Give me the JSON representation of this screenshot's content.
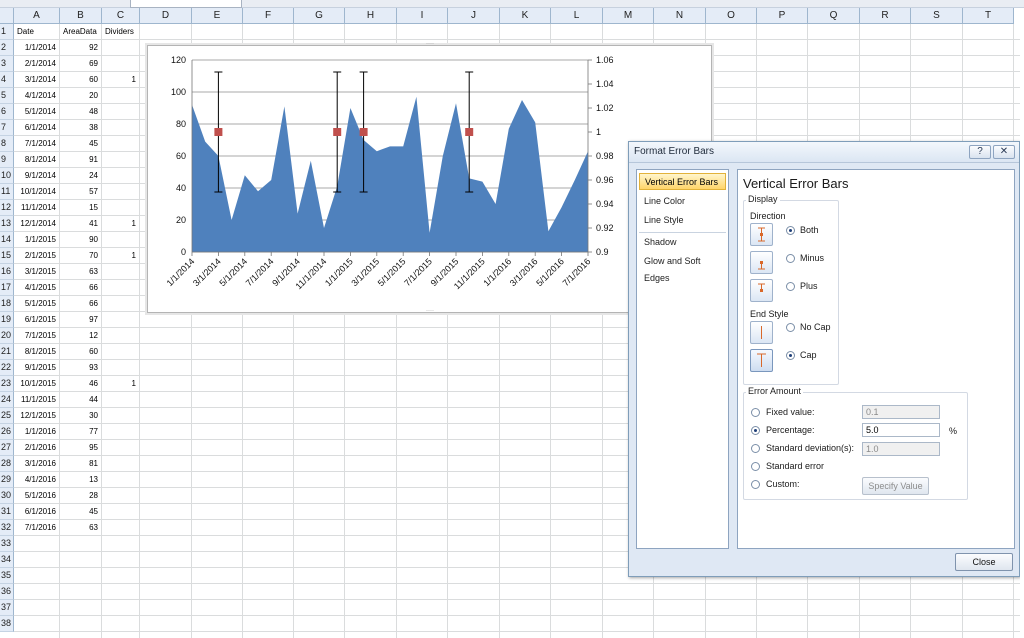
{
  "columns": [
    "A",
    "B",
    "C",
    "D",
    "E",
    "F",
    "G",
    "H",
    "I",
    "J",
    "K",
    "L",
    "M",
    "N",
    "O",
    "P",
    "Q",
    "R",
    "S",
    "T"
  ],
  "rows": [
    "1",
    "2",
    "3",
    "4",
    "5",
    "6",
    "7",
    "8",
    "9",
    "10",
    "11",
    "12",
    "13",
    "14",
    "15",
    "16",
    "17",
    "18",
    "19",
    "20",
    "21",
    "22",
    "23",
    "24",
    "25",
    "26",
    "27",
    "28",
    "29",
    "30",
    "31",
    "32",
    "33",
    "34",
    "35",
    "36",
    "37",
    "38"
  ],
  "headers": {
    "a": "Date",
    "b": "AreaData",
    "c": "Dividers"
  },
  "data": [
    {
      "date": "1/1/2014",
      "value": "92",
      "divider": ""
    },
    {
      "date": "2/1/2014",
      "value": "69",
      "divider": ""
    },
    {
      "date": "3/1/2014",
      "value": "60",
      "divider": "1"
    },
    {
      "date": "4/1/2014",
      "value": "20",
      "divider": ""
    },
    {
      "date": "5/1/2014",
      "value": "48",
      "divider": ""
    },
    {
      "date": "6/1/2014",
      "value": "38",
      "divider": ""
    },
    {
      "date": "7/1/2014",
      "value": "45",
      "divider": ""
    },
    {
      "date": "8/1/2014",
      "value": "91",
      "divider": ""
    },
    {
      "date": "9/1/2014",
      "value": "24",
      "divider": ""
    },
    {
      "date": "10/1/2014",
      "value": "57",
      "divider": ""
    },
    {
      "date": "11/1/2014",
      "value": "15",
      "divider": ""
    },
    {
      "date": "12/1/2014",
      "value": "41",
      "divider": "1"
    },
    {
      "date": "1/1/2015",
      "value": "90",
      "divider": ""
    },
    {
      "date": "2/1/2015",
      "value": "70",
      "divider": "1"
    },
    {
      "date": "3/1/2015",
      "value": "63",
      "divider": ""
    },
    {
      "date": "4/1/2015",
      "value": "66",
      "divider": ""
    },
    {
      "date": "5/1/2015",
      "value": "66",
      "divider": ""
    },
    {
      "date": "6/1/2015",
      "value": "97",
      "divider": ""
    },
    {
      "date": "7/1/2015",
      "value": "12",
      "divider": ""
    },
    {
      "date": "8/1/2015",
      "value": "60",
      "divider": ""
    },
    {
      "date": "9/1/2015",
      "value": "93",
      "divider": ""
    },
    {
      "date": "10/1/2015",
      "value": "46",
      "divider": "1"
    },
    {
      "date": "11/1/2015",
      "value": "44",
      "divider": ""
    },
    {
      "date": "12/1/2015",
      "value": "30",
      "divider": ""
    },
    {
      "date": "1/1/2016",
      "value": "77",
      "divider": ""
    },
    {
      "date": "2/1/2016",
      "value": "95",
      "divider": ""
    },
    {
      "date": "3/1/2016",
      "value": "81",
      "divider": ""
    },
    {
      "date": "4/1/2016",
      "value": "13",
      "divider": ""
    },
    {
      "date": "5/1/2016",
      "value": "28",
      "divider": ""
    },
    {
      "date": "6/1/2016",
      "value": "45",
      "divider": ""
    },
    {
      "date": "7/1/2016",
      "value": "63",
      "divider": ""
    }
  ],
  "chart_data": {
    "type": "area",
    "x": [
      "1/1/2014",
      "2/1/2014",
      "3/1/2014",
      "4/1/2014",
      "5/1/2014",
      "6/1/2014",
      "7/1/2014",
      "8/1/2014",
      "9/1/2014",
      "10/1/2014",
      "11/1/2014",
      "12/1/2014",
      "1/1/2015",
      "2/1/2015",
      "3/1/2015",
      "4/1/2015",
      "5/1/2015",
      "6/1/2015",
      "7/1/2015",
      "8/1/2015",
      "9/1/2015",
      "10/1/2015",
      "11/1/2015",
      "12/1/2015",
      "1/1/2016",
      "2/1/2016",
      "3/1/2016",
      "4/1/2016",
      "5/1/2016",
      "6/1/2016",
      "7/1/2016"
    ],
    "series": [
      {
        "values": [
          92,
          69,
          60,
          20,
          48,
          38,
          45,
          91,
          24,
          57,
          15,
          41,
          90,
          70,
          63,
          66,
          66,
          97,
          12,
          60,
          93,
          46,
          44,
          30,
          77,
          95,
          81,
          13,
          28,
          45,
          63
        ],
        "color": "#4f81bd"
      }
    ],
    "secondary_series": {
      "type": "scatter",
      "x": [
        "3/1/2014",
        "12/1/2014",
        "2/1/2015",
        "10/1/2015"
      ],
      "values": [
        1,
        1,
        1,
        1
      ],
      "color": "#c0504d",
      "error_bars": {
        "type": "percentage",
        "amount": 5
      }
    },
    "xtick_labels": [
      "1/1/2014",
      "3/1/2014",
      "5/1/2014",
      "7/1/2014",
      "9/1/2014",
      "11/1/2014",
      "1/1/2015",
      "3/1/2015",
      "5/1/2015",
      "7/1/2015",
      "9/1/2015",
      "11/1/2015",
      "1/1/2016",
      "3/1/2016",
      "5/1/2016",
      "7/1/2016"
    ],
    "ylim": [
      0,
      120
    ],
    "yticks": [
      "0",
      "20",
      "40",
      "60",
      "80",
      "100",
      "120"
    ],
    "y2lim": [
      0.9,
      1.06
    ],
    "y2ticks": [
      "0.9",
      "0.92",
      "0.94",
      "0.96",
      "0.98",
      "1",
      "1.02",
      "1.04",
      "1.06"
    ],
    "grid": true,
    "title": "",
    "xlabel": "",
    "ylabel": ""
  },
  "dialog": {
    "title": "Format Error Bars",
    "help": "?",
    "nav": [
      "Vertical Error Bars",
      "Line Color",
      "Line Style",
      "Shadow",
      "Glow and Soft Edges"
    ],
    "panel_title": "Vertical Error Bars",
    "display_label": "Display",
    "direction_label": "Direction",
    "direction": [
      {
        "label": "Both",
        "selected": true
      },
      {
        "label": "Minus",
        "selected": false
      },
      {
        "label": "Plus",
        "selected": false
      }
    ],
    "end_style_label": "End Style",
    "end_style": [
      {
        "label": "No Cap",
        "selected": false
      },
      {
        "label": "Cap",
        "selected": true
      }
    ],
    "error_amount_label": "Error Amount",
    "fixed_value": {
      "label": "Fixed value:",
      "value": "0.1",
      "selected": false
    },
    "percentage": {
      "label": "Percentage:",
      "value": "5.0",
      "unit": "%",
      "selected": true
    },
    "std_dev": {
      "label": "Standard deviation(s):",
      "value": "1.0",
      "selected": false
    },
    "std_error": {
      "label": "Standard error",
      "selected": false
    },
    "custom": {
      "label": "Custom:",
      "selected": false
    },
    "specify_value": "Specify Value",
    "close": "Close"
  }
}
